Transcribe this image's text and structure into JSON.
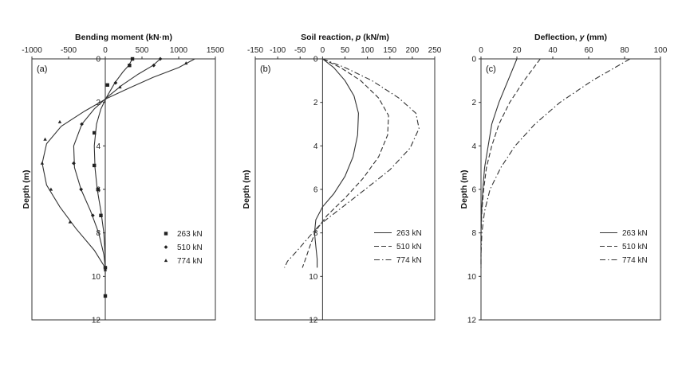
{
  "chart_data": [
    {
      "type": "line",
      "panel_label": "(a)",
      "title": "Bending moment (kN·m)",
      "title_parts": [
        {
          "text": "Bending moment (kN·m)",
          "italic": false
        }
      ],
      "ylabel": "Depth (m)",
      "xlim": [
        -1000,
        1500
      ],
      "ylim": [
        0,
        12
      ],
      "x_ticks": [
        "-1000",
        "-500",
        "0",
        "500",
        "1000",
        "1500"
      ],
      "x_tick_values": [
        -1000,
        -500,
        0,
        500,
        1000,
        1500
      ],
      "y_ticks": [
        "0",
        "2",
        "4",
        "6",
        "8",
        "10",
        "12"
      ],
      "y_tick_values": [
        0,
        2,
        4,
        6,
        8,
        10,
        12
      ],
      "x_axis_position": "top",
      "vertical_zero_line": true,
      "grid": false,
      "legend_position": "bottom-right",
      "series": [
        {
          "name": "263 kN",
          "style": "solid",
          "marker": "square",
          "curve": [
            [
              370,
              0
            ],
            [
              320,
              0.3
            ],
            [
              240,
              0.6
            ],
            [
              130,
              1.1
            ],
            [
              20,
              1.75
            ],
            [
              -60,
              2.3
            ],
            [
              -120,
              3
            ],
            [
              -150,
              4
            ],
            [
              -140,
              5
            ],
            [
              -110,
              6
            ],
            [
              -60,
              7
            ],
            [
              -20,
              8
            ],
            [
              -3,
              9
            ],
            [
              0,
              9.6
            ],
            [
              0,
              10.2
            ],
            [
              0,
              10.9
            ]
          ],
          "points": [
            [
              370,
              0
            ],
            [
              330,
              0.3
            ],
            [
              30,
              1.2
            ],
            [
              -150,
              3.4
            ],
            [
              -150,
              4.9
            ],
            [
              -100,
              6
            ],
            [
              -60,
              7.2
            ],
            [
              0,
              9.6
            ],
            [
              0,
              10.9
            ]
          ]
        },
        {
          "name": "510 kN",
          "style": "solid",
          "marker": "diamond",
          "curve": [
            [
              750,
              0
            ],
            [
              650,
              0.3
            ],
            [
              450,
              0.7
            ],
            [
              230,
              1.2
            ],
            [
              30,
              1.75
            ],
            [
              -150,
              2.3
            ],
            [
              -320,
              3
            ],
            [
              -430,
              4
            ],
            [
              -420,
              5
            ],
            [
              -330,
              6
            ],
            [
              -200,
              7
            ],
            [
              -90,
              8
            ],
            [
              -20,
              9
            ],
            [
              0,
              9.6
            ],
            [
              0,
              9.9
            ]
          ],
          "points": [
            [
              750,
              0
            ],
            [
              660,
              0.3
            ],
            [
              140,
              1.1
            ],
            [
              -320,
              3
            ],
            [
              -430,
              4.8
            ],
            [
              -330,
              6
            ],
            [
              -170,
              7.2
            ],
            [
              0,
              9.6
            ]
          ]
        },
        {
          "name": "774 kN",
          "style": "solid",
          "marker": "triangle",
          "curve": [
            [
              1220,
              0
            ],
            [
              1000,
              0.4
            ],
            [
              650,
              0.85
            ],
            [
              320,
              1.35
            ],
            [
              30,
              1.8
            ],
            [
              -280,
              2.4
            ],
            [
              -600,
              3.1
            ],
            [
              -800,
              3.9
            ],
            [
              -860,
              4.8
            ],
            [
              -800,
              5.8
            ],
            [
              -620,
              6.8
            ],
            [
              -400,
              7.8
            ],
            [
              -150,
              8.8
            ],
            [
              -20,
              9.5
            ],
            [
              0,
              9.8
            ]
          ],
          "points": [
            [
              1100,
              0.2
            ],
            [
              200,
              1.3
            ],
            [
              -620,
              2.9
            ],
            [
              -820,
              3.7
            ],
            [
              -860,
              4.8
            ],
            [
              -740,
              6
            ],
            [
              -480,
              7.5
            ],
            [
              0,
              9.7
            ]
          ]
        }
      ]
    },
    {
      "type": "line",
      "panel_label": "(b)",
      "title": "Soil reaction, p (kN/m)",
      "title_parts": [
        {
          "text": "Soil reaction, ",
          "italic": false
        },
        {
          "text": "p",
          "italic": true
        },
        {
          "text": " (kN/m)",
          "italic": false
        }
      ],
      "ylabel": "Depth (m)",
      "xlim": [
        -150,
        250
      ],
      "ylim": [
        0,
        12
      ],
      "x_ticks": [
        "-150",
        "-100",
        "-50",
        "0",
        "50",
        "100",
        "150",
        "200",
        "250"
      ],
      "x_tick_values": [
        -150,
        -100,
        -50,
        0,
        50,
        100,
        150,
        200,
        250
      ],
      "y_ticks": [
        "0",
        "2",
        "4",
        "6",
        "8",
        "10",
        "12"
      ],
      "y_tick_values": [
        0,
        2,
        4,
        6,
        8,
        10,
        12
      ],
      "x_axis_position": "top",
      "vertical_zero_line": true,
      "grid": false,
      "legend_position": "bottom-right",
      "series": [
        {
          "name": "263 kN",
          "style": "solid",
          "curve": [
            [
              0,
              0
            ],
            [
              25,
              0.4
            ],
            [
              50,
              1
            ],
            [
              70,
              1.7
            ],
            [
              80,
              2.5
            ],
            [
              78,
              3.5
            ],
            [
              68,
              4.5
            ],
            [
              50,
              5.4
            ],
            [
              25,
              6.2
            ],
            [
              0,
              6.8
            ],
            [
              -15,
              7.4
            ],
            [
              -18,
              8
            ],
            [
              -15,
              8.6
            ],
            [
              -12,
              9.2
            ],
            [
              -12,
              9.6
            ]
          ]
        },
        {
          "name": "510 kN",
          "style": "dash",
          "curve": [
            [
              0,
              0
            ],
            [
              40,
              0.4
            ],
            [
              85,
              1
            ],
            [
              125,
              1.8
            ],
            [
              147,
              2.6
            ],
            [
              145,
              3.5
            ],
            [
              125,
              4.5
            ],
            [
              90,
              5.5
            ],
            [
              50,
              6.4
            ],
            [
              10,
              7.2
            ],
            [
              -15,
              7.9
            ],
            [
              -28,
              8.6
            ],
            [
              -38,
              9.2
            ],
            [
              -45,
              9.6
            ]
          ]
        },
        {
          "name": "774 kN",
          "style": "dashdot",
          "curve": [
            [
              0,
              0
            ],
            [
              50,
              0.4
            ],
            [
              110,
              1
            ],
            [
              170,
              1.8
            ],
            [
              208,
              2.5
            ],
            [
              215,
              3.2
            ],
            [
              195,
              4.1
            ],
            [
              150,
              5.1
            ],
            [
              95,
              6
            ],
            [
              45,
              6.8
            ],
            [
              -5,
              7.6
            ],
            [
              -35,
              8.3
            ],
            [
              -60,
              8.9
            ],
            [
              -78,
              9.3
            ],
            [
              -85,
              9.6
            ]
          ]
        }
      ]
    },
    {
      "type": "line",
      "panel_label": "(c)",
      "title": "Deflection, y (mm)",
      "title_parts": [
        {
          "text": "Deflection, ",
          "italic": false
        },
        {
          "text": "y",
          "italic": true
        },
        {
          "text": " (mm)",
          "italic": false
        }
      ],
      "ylabel": "Depth (m)",
      "xlim": [
        0,
        100
      ],
      "ylim": [
        0,
        12
      ],
      "x_ticks": [
        "0",
        "20",
        "40",
        "60",
        "80",
        "100"
      ],
      "x_tick_values": [
        0,
        20,
        40,
        60,
        80,
        100
      ],
      "y_ticks": [
        "0",
        "2",
        "4",
        "6",
        "8",
        "10",
        "12"
      ],
      "y_tick_values": [
        0,
        2,
        4,
        6,
        8,
        10,
        12
      ],
      "x_axis_position": "top",
      "vertical_zero_line": false,
      "grid": false,
      "legend_position": "bottom-right",
      "series": [
        {
          "name": "263 kN",
          "style": "solid",
          "curve": [
            [
              20,
              0
            ],
            [
              15,
              1
            ],
            [
              10,
              2
            ],
            [
              6,
              3
            ],
            [
              4,
              4
            ],
            [
              2,
              5
            ],
            [
              1,
              6
            ],
            [
              0.3,
              7
            ],
            [
              0,
              8
            ],
            [
              0,
              9
            ],
            [
              0,
              9.5
            ]
          ]
        },
        {
          "name": "510 kN",
          "style": "dash",
          "curve": [
            [
              33,
              0
            ],
            [
              24,
              1
            ],
            [
              16,
              2
            ],
            [
              10,
              3
            ],
            [
              6,
              4
            ],
            [
              3,
              5
            ],
            [
              1.5,
              6
            ],
            [
              0.5,
              7
            ],
            [
              0,
              8
            ],
            [
              0,
              9
            ],
            [
              0,
              9.6
            ]
          ]
        },
        {
          "name": "774 kN",
          "style": "dashdot",
          "curve": [
            [
              83,
              0
            ],
            [
              62,
              1
            ],
            [
              44,
              2
            ],
            [
              30,
              3
            ],
            [
              19,
              4
            ],
            [
              11,
              5
            ],
            [
              5,
              6
            ],
            [
              2,
              7
            ],
            [
              0.5,
              8
            ],
            [
              0,
              9
            ],
            [
              0,
              9.7
            ]
          ]
        }
      ]
    }
  ]
}
